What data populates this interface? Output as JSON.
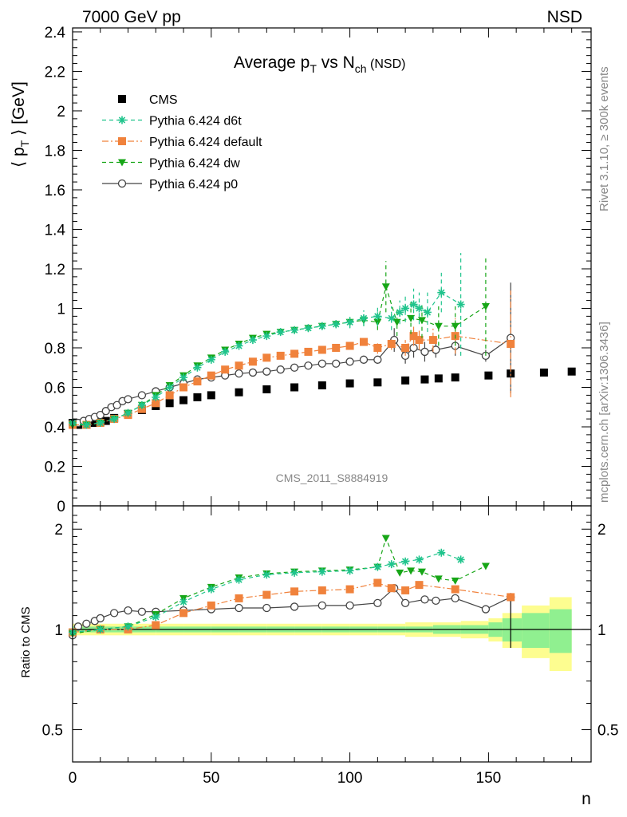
{
  "header": {
    "left": "7000 GeV pp",
    "right": "NSD"
  },
  "side_labels": {
    "top": "Rivet 3.1.10, ≥ 300k events",
    "bottom": "mcplots.cern.ch [arXiv:1306.3436]"
  },
  "watermark": "CMS_2011_S8884919",
  "colors": {
    "cms": "#000000",
    "d6t": "#1fc48c",
    "default": "#f0823c",
    "dw": "#17a617",
    "p0": "#444444",
    "band_outer": "#fdfd90",
    "band_inner": "#90f090"
  },
  "chart_data": [
    {
      "type": "scatter",
      "title": {
        "main": "Average p",
        "sub1": "T",
        "mid": " vs N",
        "sub2": "ch",
        "tail": " (NSD)"
      },
      "ylabel": {
        "pre": "⟨ p",
        "sub": "T",
        "post": " ⟩ [GeV]"
      },
      "xlim": [
        0,
        187
      ],
      "ylim": [
        0,
        2.42
      ],
      "yticks": [
        "0",
        "0.2",
        "0.4",
        "0.6",
        "0.8",
        "1",
        "1.2",
        "1.4",
        "1.6",
        "1.8",
        "2",
        "2.2",
        "2.4"
      ],
      "legend_position": "top-left",
      "series": [
        {
          "name": "CMS",
          "key": "cms",
          "marker": "square",
          "line": "none",
          "x": [
            0,
            2,
            5,
            8,
            10,
            12,
            15,
            20,
            25,
            30,
            35,
            40,
            45,
            50,
            60,
            70,
            80,
            90,
            100,
            110,
            120,
            127,
            132,
            138,
            150,
            158,
            170,
            180
          ],
          "y": [
            0.42,
            0.41,
            0.41,
            0.42,
            0.425,
            0.43,
            0.445,
            0.465,
            0.485,
            0.505,
            0.52,
            0.535,
            0.55,
            0.56,
            0.575,
            0.59,
            0.6,
            0.61,
            0.62,
            0.625,
            0.635,
            0.64,
            0.645,
            0.65,
            0.66,
            0.67,
            0.675,
            0.68
          ]
        },
        {
          "name": "Pythia 6.424 d6t",
          "key": "d6t",
          "marker": "star",
          "line": "dash",
          "x": [
            0,
            5,
            10,
            15,
            20,
            25,
            30,
            35,
            40,
            45,
            50,
            55,
            60,
            65,
            70,
            75,
            80,
            85,
            90,
            95,
            100,
            105,
            110,
            115,
            118,
            120,
            123,
            125,
            128,
            133,
            140
          ],
          "y": [
            0.42,
            0.41,
            0.42,
            0.44,
            0.47,
            0.51,
            0.55,
            0.6,
            0.65,
            0.7,
            0.74,
            0.78,
            0.81,
            0.84,
            0.86,
            0.88,
            0.89,
            0.9,
            0.91,
            0.92,
            0.93,
            0.95,
            0.96,
            0.95,
            0.98,
            1.0,
            1.02,
            1.0,
            0.98,
            1.08,
            1.02
          ],
          "err": [
            0,
            0,
            0,
            0,
            0,
            0,
            0,
            0,
            0,
            0,
            0,
            0,
            0,
            0,
            0,
            0,
            0,
            0,
            0,
            0.02,
            0.03,
            0.04,
            0.05,
            0.06,
            0.06,
            0.07,
            0.08,
            0.08,
            0.1,
            0.1,
            0.26
          ]
        },
        {
          "name": "Pythia 6.424 default",
          "key": "default",
          "marker": "square",
          "line": "dashdot",
          "x": [
            0,
            5,
            10,
            15,
            20,
            25,
            30,
            35,
            40,
            45,
            50,
            55,
            60,
            65,
            70,
            75,
            80,
            85,
            90,
            95,
            100,
            105,
            110,
            115,
            120,
            123,
            125,
            130,
            138,
            158
          ],
          "y": [
            0.41,
            0.41,
            0.42,
            0.44,
            0.46,
            0.49,
            0.52,
            0.56,
            0.6,
            0.63,
            0.66,
            0.69,
            0.71,
            0.73,
            0.75,
            0.76,
            0.77,
            0.78,
            0.79,
            0.8,
            0.81,
            0.83,
            0.8,
            0.82,
            0.8,
            0.86,
            0.84,
            0.84,
            0.86,
            0.82
          ],
          "err": [
            0,
            0,
            0,
            0,
            0,
            0,
            0,
            0,
            0,
            0,
            0,
            0,
            0,
            0,
            0,
            0,
            0,
            0,
            0,
            0.01,
            0.02,
            0.02,
            0.03,
            0.03,
            0.04,
            0.05,
            0.05,
            0.06,
            0.09,
            0.27
          ]
        },
        {
          "name": "Pythia 6.424 dw",
          "key": "dw",
          "marker": "triangle-down",
          "line": "dash",
          "x": [
            0,
            5,
            10,
            15,
            20,
            25,
            30,
            35,
            40,
            45,
            50,
            55,
            60,
            65,
            70,
            75,
            80,
            85,
            90,
            95,
            100,
            105,
            110,
            113,
            117,
            122,
            126,
            132,
            138,
            149
          ],
          "y": [
            0.41,
            0.41,
            0.42,
            0.44,
            0.47,
            0.51,
            0.56,
            0.61,
            0.66,
            0.71,
            0.75,
            0.79,
            0.82,
            0.85,
            0.87,
            0.88,
            0.89,
            0.9,
            0.91,
            0.92,
            0.93,
            0.94,
            0.93,
            1.11,
            0.93,
            0.95,
            0.94,
            0.91,
            0.91,
            1.01
          ],
          "err": [
            0,
            0,
            0,
            0,
            0,
            0,
            0,
            0,
            0,
            0,
            0,
            0,
            0,
            0,
            0,
            0,
            0,
            0,
            0,
            0.02,
            0.03,
            0.03,
            0.04,
            0.13,
            0.07,
            0.08,
            0.09,
            0.1,
            0.1,
            0.25
          ]
        },
        {
          "name": "Pythia 6.424 p0",
          "key": "p0",
          "marker": "open-circle",
          "line": "solid",
          "x": [
            0,
            2,
            4,
            6,
            8,
            10,
            12,
            14,
            16,
            18,
            20,
            25,
            30,
            35,
            40,
            45,
            50,
            55,
            60,
            65,
            70,
            75,
            80,
            85,
            90,
            95,
            100,
            105,
            110,
            116,
            120,
            123,
            127,
            131,
            138,
            149,
            158
          ],
          "y": [
            0.41,
            0.42,
            0.43,
            0.44,
            0.45,
            0.46,
            0.48,
            0.5,
            0.51,
            0.53,
            0.54,
            0.56,
            0.58,
            0.6,
            0.62,
            0.64,
            0.65,
            0.66,
            0.67,
            0.675,
            0.68,
            0.69,
            0.7,
            0.71,
            0.72,
            0.72,
            0.73,
            0.74,
            0.74,
            0.84,
            0.76,
            0.8,
            0.78,
            0.79,
            0.81,
            0.76,
            0.85
          ],
          "err": [
            0,
            0,
            0,
            0,
            0,
            0,
            0,
            0,
            0,
            0,
            0,
            0,
            0,
            0,
            0,
            0,
            0,
            0,
            0,
            0,
            0,
            0,
            0,
            0,
            0,
            0.01,
            0.01,
            0.02,
            0.02,
            0.06,
            0.04,
            0.05,
            0.05,
            0.04,
            0.05,
            0.03,
            0.28
          ]
        }
      ]
    },
    {
      "type": "scatter",
      "ylabel": "Ratio to CMS",
      "xlabel": "n",
      "xlim": [
        0,
        187
      ],
      "ylim": [
        0.4,
        2.35
      ],
      "yticks": [
        "0.5",
        "1",
        "2"
      ],
      "xticks": [
        "0",
        "50",
        "100",
        "150"
      ],
      "reference": 1,
      "series": [
        {
          "name": "Pythia 6.424 d6t",
          "key": "d6t",
          "x": [
            0,
            10,
            20,
            30,
            40,
            50,
            60,
            70,
            80,
            90,
            100,
            110,
            115,
            120,
            125,
            133,
            140
          ],
          "y": [
            0.98,
            1.0,
            1.02,
            1.09,
            1.21,
            1.32,
            1.41,
            1.46,
            1.48,
            1.49,
            1.5,
            1.54,
            1.57,
            1.6,
            1.62,
            1.7,
            1.62
          ]
        },
        {
          "name": "Pythia 6.424 default",
          "key": "default",
          "x": [
            0,
            10,
            20,
            30,
            40,
            50,
            60,
            70,
            80,
            90,
            100,
            110,
            115,
            120,
            125,
            138,
            158
          ],
          "y": [
            0.98,
            1.0,
            1.0,
            1.03,
            1.12,
            1.18,
            1.24,
            1.27,
            1.3,
            1.31,
            1.32,
            1.38,
            1.33,
            1.31,
            1.36,
            1.32,
            1.25
          ]
        },
        {
          "name": "Pythia 6.424 dw",
          "key": "dw",
          "x": [
            0,
            10,
            20,
            30,
            40,
            50,
            60,
            70,
            80,
            90,
            100,
            110,
            113,
            118,
            122,
            126,
            132,
            138,
            149
          ],
          "y": [
            0.97,
            1.0,
            1.02,
            1.11,
            1.24,
            1.34,
            1.43,
            1.47,
            1.49,
            1.5,
            1.51,
            1.54,
            1.88,
            1.48,
            1.5,
            1.49,
            1.42,
            1.4,
            1.55
          ]
        },
        {
          "name": "Pythia 6.424 p0",
          "key": "p0",
          "x": [
            0,
            2,
            5,
            8,
            10,
            15,
            20,
            25,
            30,
            40,
            50,
            60,
            70,
            80,
            90,
            100,
            110,
            116,
            120,
            127,
            131,
            138,
            149,
            158
          ],
          "y": [
            0.96,
            1.02,
            1.04,
            1.06,
            1.08,
            1.12,
            1.14,
            1.13,
            1.13,
            1.14,
            1.15,
            1.16,
            1.16,
            1.17,
            1.18,
            1.18,
            1.2,
            1.33,
            1.2,
            1.23,
            1.22,
            1.24,
            1.15,
            1.25
          ]
        }
      ],
      "band_edges": [
        0,
        10,
        20,
        30,
        40,
        50,
        60,
        70,
        80,
        90,
        100,
        110,
        120,
        130,
        140,
        150,
        155,
        162,
        172,
        180
      ],
      "band_inner": [
        0.02,
        0.02,
        0.02,
        0.02,
        0.02,
        0.02,
        0.02,
        0.02,
        0.02,
        0.02,
        0.02,
        0.02,
        0.02,
        0.03,
        0.03,
        0.05,
        0.08,
        0.12,
        0.15
      ],
      "band_outer": [
        0.04,
        0.04,
        0.04,
        0.04,
        0.04,
        0.04,
        0.04,
        0.04,
        0.04,
        0.04,
        0.04,
        0.04,
        0.05,
        0.05,
        0.06,
        0.08,
        0.12,
        0.18,
        0.25
      ]
    }
  ]
}
